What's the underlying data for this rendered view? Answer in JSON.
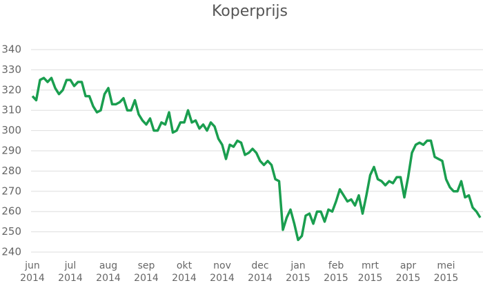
{
  "chart_data": {
    "type": "line",
    "title": "Koperprijs",
    "color": "#1a9e4f",
    "grid": true,
    "ylim": [
      240,
      340
    ],
    "yticks": [
      240,
      250,
      260,
      270,
      280,
      290,
      300,
      310,
      320,
      330,
      340
    ],
    "categories": [
      "jun 2014",
      null,
      null,
      null,
      null,
      null,
      null,
      null,
      null,
      null,
      "jul 2014",
      null,
      null,
      null,
      null,
      null,
      null,
      null,
      null,
      null,
      "aug 2014",
      null,
      null,
      null,
      null,
      null,
      null,
      null,
      null,
      null,
      "sep 2014",
      null,
      null,
      null,
      null,
      null,
      null,
      null,
      null,
      null,
      "okt 2014",
      null,
      null,
      null,
      null,
      null,
      null,
      null,
      null,
      null,
      "nov 2014",
      null,
      null,
      null,
      null,
      null,
      null,
      null,
      null,
      null,
      "dec 2014",
      null,
      null,
      null,
      null,
      null,
      null,
      null,
      null,
      null,
      "jan 2015",
      null,
      null,
      null,
      null,
      null,
      null,
      null,
      null,
      null,
      "feb 2015",
      null,
      null,
      null,
      null,
      null,
      null,
      null,
      null,
      "mrt 2015",
      null,
      null,
      null,
      null,
      null,
      null,
      null,
      null,
      null,
      "apr 2015",
      null,
      null,
      null,
      null,
      null,
      null,
      null,
      null,
      null,
      "mei 2015",
      null,
      null,
      null,
      null,
      null,
      null,
      null,
      null,
      null
    ],
    "values": [
      317,
      315,
      325,
      326,
      324,
      326,
      321,
      318,
      320,
      325,
      325,
      322,
      324,
      324,
      317,
      317,
      312,
      309,
      310,
      318,
      321,
      313,
      313,
      314,
      316,
      310,
      310,
      315,
      308,
      305,
      303,
      306,
      300,
      300,
      304,
      303,
      309,
      299,
      300,
      304,
      304,
      310,
      304,
      305,
      301,
      303,
      300,
      304,
      302,
      296,
      293,
      286,
      293,
      292,
      295,
      294,
      288,
      289,
      291,
      289,
      285,
      283,
      285,
      283,
      276,
      275,
      251,
      257,
      261,
      254,
      246,
      248,
      258,
      259,
      254,
      260,
      260,
      255,
      261,
      260,
      265,
      271,
      268,
      265,
      266,
      263,
      268,
      259,
      268,
      278,
      282,
      276,
      275,
      273,
      275,
      274,
      277,
      277,
      267,
      277,
      289,
      293,
      294,
      293,
      295,
      295,
      287,
      286,
      285,
      276,
      272,
      270,
      270,
      275,
      267,
      268,
      262,
      260,
      257
    ]
  }
}
